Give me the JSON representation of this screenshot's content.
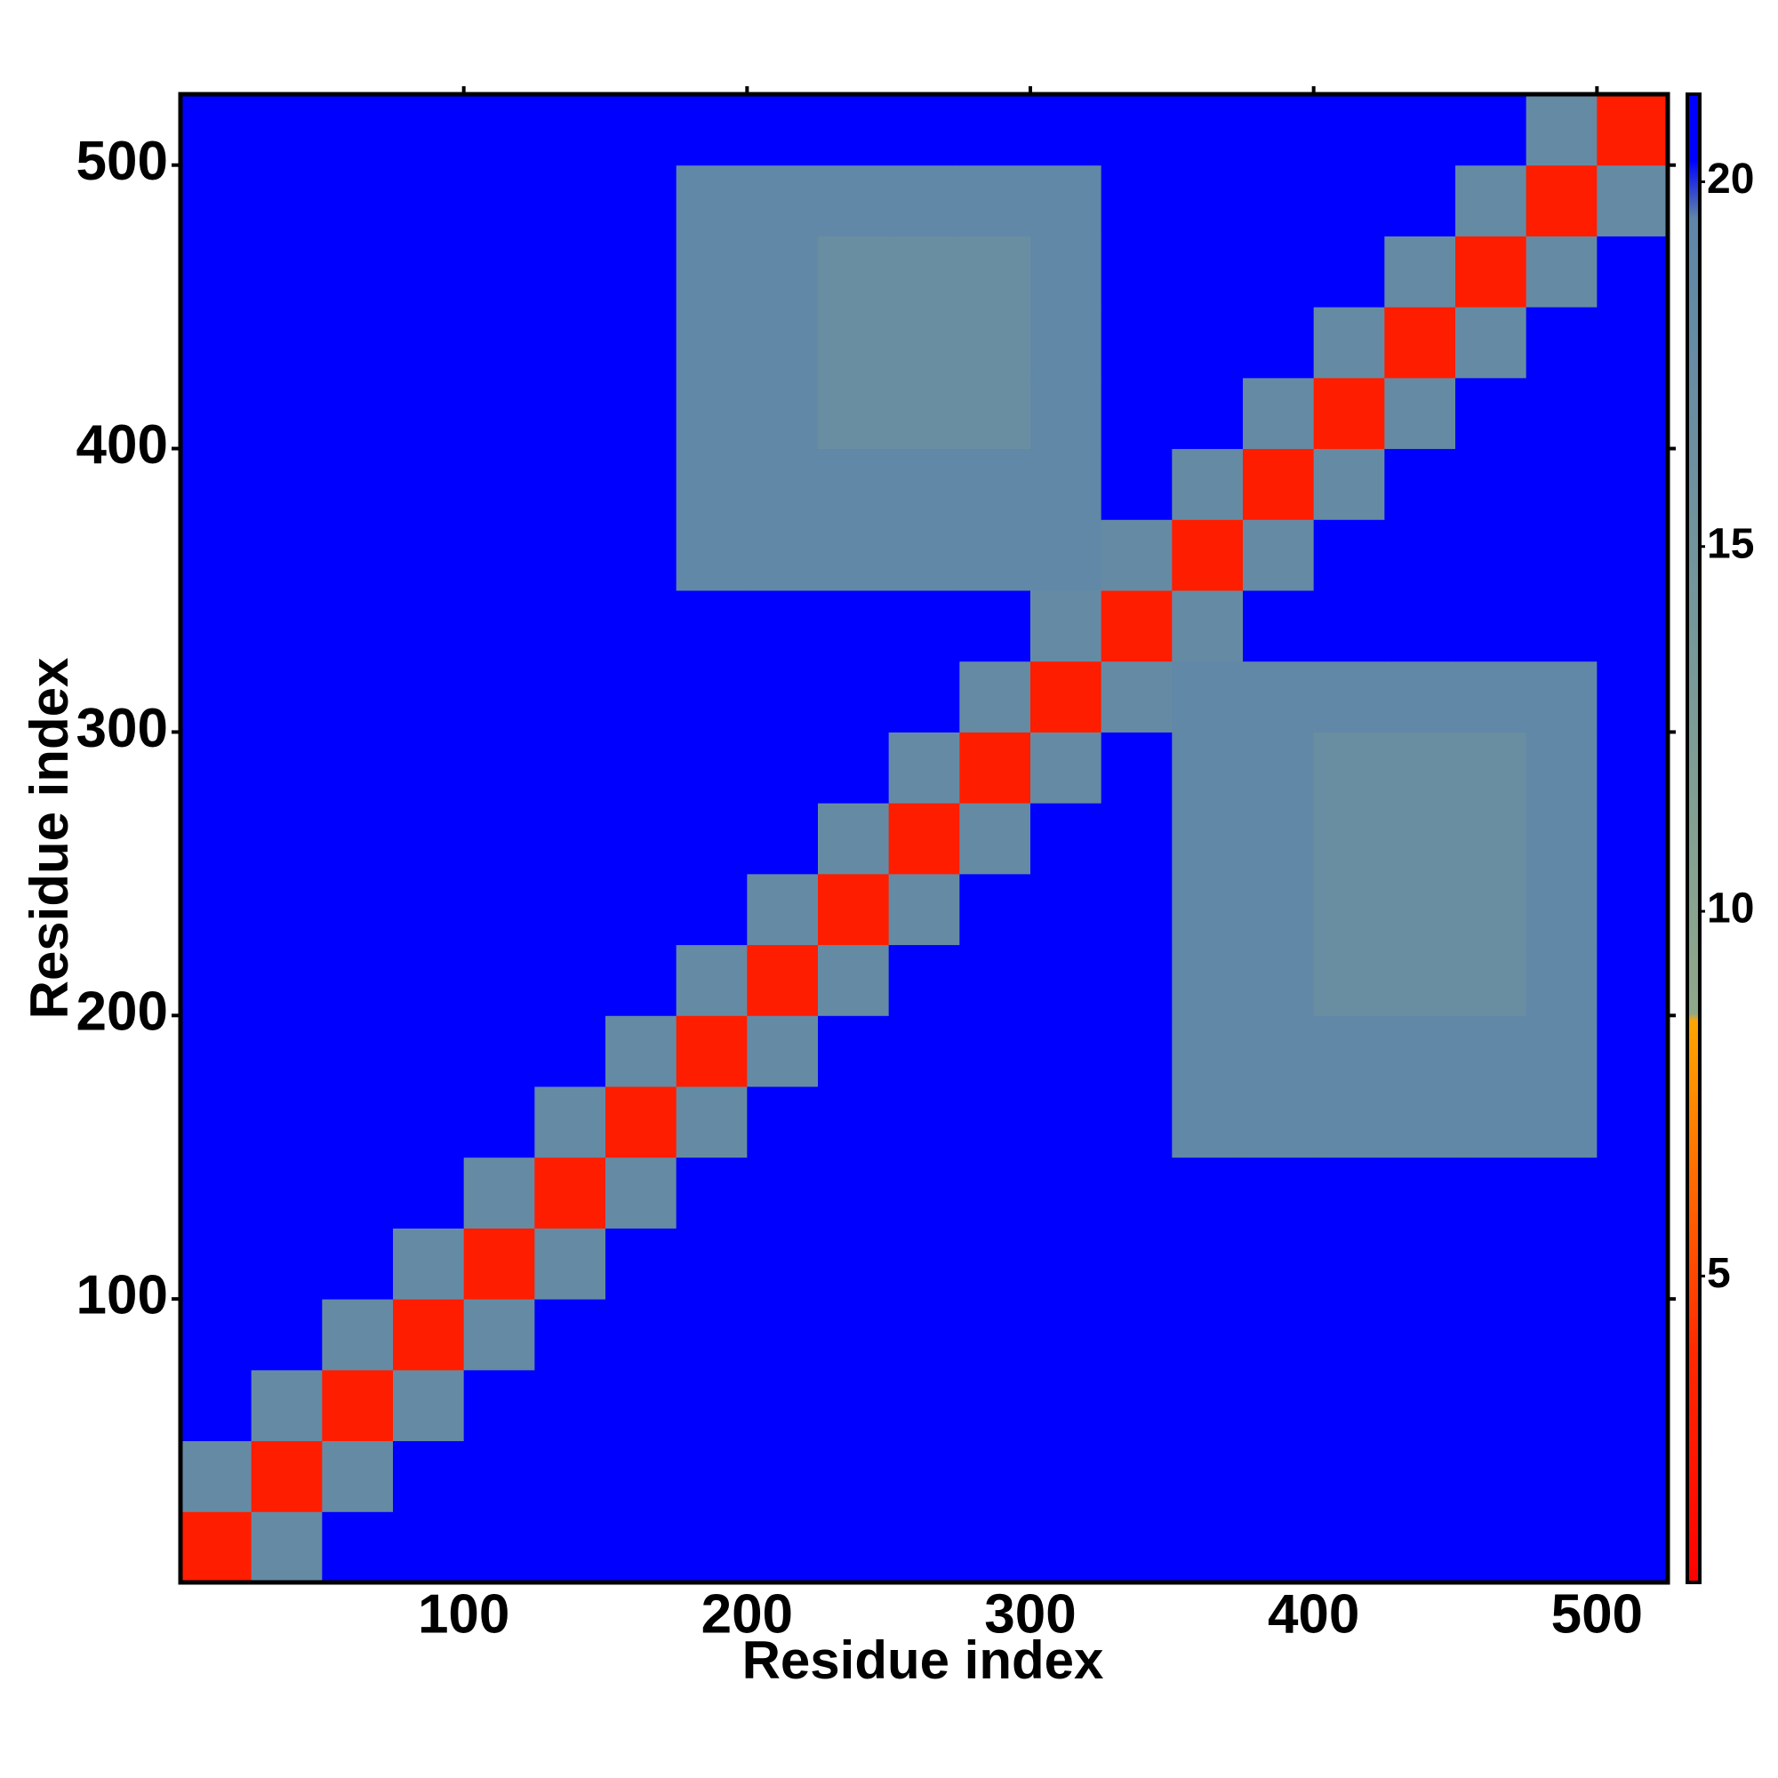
{
  "chart_data": {
    "type": "heatmap",
    "xlabel": "Residue index",
    "ylabel": "Residue index",
    "xlim": [
      0,
      525
    ],
    "ylim": [
      0,
      525
    ],
    "xticks": [
      100,
      200,
      300,
      400,
      500
    ],
    "yticks": [
      100,
      200,
      300,
      400,
      500
    ],
    "xbins": [
      0,
      25,
      50,
      75,
      100,
      125,
      150,
      175,
      200,
      225,
      250,
      275,
      300,
      325,
      350,
      375,
      400,
      425,
      450,
      475,
      500,
      525
    ],
    "ybins": [
      0,
      25,
      50,
      75,
      100,
      125,
      150,
      175,
      200,
      225,
      250,
      275,
      300,
      325,
      350,
      375,
      400,
      425,
      450,
      475,
      500,
      525
    ],
    "z": [
      [
        3,
        18,
        21,
        21,
        21,
        21,
        21,
        21,
        21,
        21,
        21,
        21,
        21,
        21,
        21,
        21,
        21,
        21,
        21,
        21,
        21
      ],
      [
        18,
        3,
        18,
        21,
        21,
        21,
        21,
        21,
        21,
        21,
        21,
        21,
        21,
        21,
        21,
        21,
        21,
        21,
        21,
        21,
        21
      ],
      [
        21,
        18,
        3,
        18,
        21,
        21,
        21,
        21,
        21,
        21,
        21,
        21,
        21,
        21,
        21,
        21,
        21,
        21,
        21,
        21,
        21
      ],
      [
        21,
        21,
        18,
        3,
        18,
        21,
        21,
        21,
        21,
        21,
        21,
        21,
        21,
        21,
        21,
        21,
        21,
        21,
        21,
        21,
        21
      ],
      [
        21,
        21,
        21,
        18,
        3,
        18,
        21,
        21,
        21,
        21,
        21,
        21,
        21,
        21,
        21,
        21,
        21,
        21,
        21,
        21,
        21
      ],
      [
        21,
        21,
        21,
        21,
        18,
        3,
        18,
        21,
        21,
        21,
        21,
        21,
        21,
        21,
        21,
        21,
        21,
        21,
        21,
        21,
        21
      ],
      [
        21,
        21,
        21,
        21,
        21,
        18,
        3,
        18,
        21,
        21,
        21,
        21,
        21,
        21,
        19,
        19,
        19,
        19,
        19,
        19,
        21
      ],
      [
        21,
        21,
        21,
        21,
        21,
        21,
        18,
        3,
        18,
        21,
        21,
        21,
        21,
        21,
        19,
        19,
        19,
        19,
        19,
        19,
        21
      ],
      [
        21,
        21,
        21,
        21,
        21,
        21,
        21,
        18,
        3,
        18,
        21,
        21,
        21,
        21,
        19,
        19,
        17,
        17,
        17,
        19,
        21
      ],
      [
        21,
        21,
        21,
        21,
        21,
        21,
        21,
        21,
        18,
        3,
        18,
        21,
        21,
        21,
        19,
        19,
        17,
        17,
        17,
        19,
        21
      ],
      [
        21,
        21,
        21,
        21,
        21,
        21,
        21,
        21,
        21,
        18,
        3,
        18,
        21,
        21,
        19,
        19,
        17,
        17,
        17,
        19,
        21
      ],
      [
        21,
        21,
        21,
        21,
        21,
        21,
        21,
        21,
        21,
        21,
        18,
        3,
        18,
        21,
        19,
        19,
        17,
        17,
        17,
        19,
        21
      ],
      [
        21,
        21,
        21,
        21,
        21,
        21,
        21,
        21,
        21,
        21,
        21,
        18,
        3,
        18,
        19,
        19,
        19,
        19,
        19,
        19,
        21
      ],
      [
        21,
        21,
        21,
        21,
        21,
        21,
        21,
        21,
        21,
        21,
        21,
        21,
        18,
        3,
        18,
        21,
        21,
        21,
        21,
        21,
        21
      ],
      [
        21,
        21,
        21,
        21,
        21,
        21,
        21,
        19,
        19,
        19,
        19,
        19,
        19,
        18,
        3,
        18,
        21,
        21,
        21,
        21,
        21
      ],
      [
        21,
        21,
        21,
        21,
        21,
        21,
        21,
        19,
        19,
        19,
        19,
        19,
        19,
        21,
        18,
        3,
        18,
        21,
        21,
        21,
        21
      ],
      [
        21,
        21,
        21,
        21,
        21,
        21,
        21,
        19,
        19,
        17,
        17,
        17,
        19,
        21,
        21,
        18,
        3,
        18,
        21,
        21,
        21
      ],
      [
        21,
        21,
        21,
        21,
        21,
        21,
        21,
        19,
        19,
        17,
        17,
        17,
        19,
        21,
        21,
        21,
        18,
        3,
        18,
        21,
        21
      ],
      [
        21,
        21,
        21,
        21,
        21,
        21,
        21,
        19,
        19,
        17,
        17,
        17,
        19,
        21,
        21,
        21,
        21,
        18,
        3,
        18,
        21
      ],
      [
        21,
        21,
        21,
        21,
        21,
        21,
        21,
        19,
        19,
        19,
        19,
        19,
        19,
        21,
        21,
        21,
        21,
        21,
        18,
        3,
        18
      ],
      [
        21,
        21,
        21,
        21,
        21,
        21,
        21,
        21,
        21,
        21,
        21,
        21,
        21,
        21,
        21,
        21,
        21,
        21,
        21,
        18,
        3
      ]
    ],
    "clim": [
      0.8,
      21.2
    ],
    "cticks": [
      5,
      10,
      15,
      20
    ],
    "colorscale": [
      {
        "value": 0.8,
        "color": "#ff0000"
      },
      {
        "value": 4,
        "color": "#ff2a00"
      },
      {
        "value": 7.5,
        "color": "#ff8c00"
      },
      {
        "value": 8.5,
        "color": "#ffa500"
      },
      {
        "value": 8.6,
        "color": "#8fa88a"
      },
      {
        "value": 13,
        "color": "#7a9a98"
      },
      {
        "value": 19.5,
        "color": "#5f86a8"
      },
      {
        "value": 20.3,
        "color": "#0000ff"
      },
      {
        "value": 21.2,
        "color": "#0000ff"
      }
    ]
  }
}
